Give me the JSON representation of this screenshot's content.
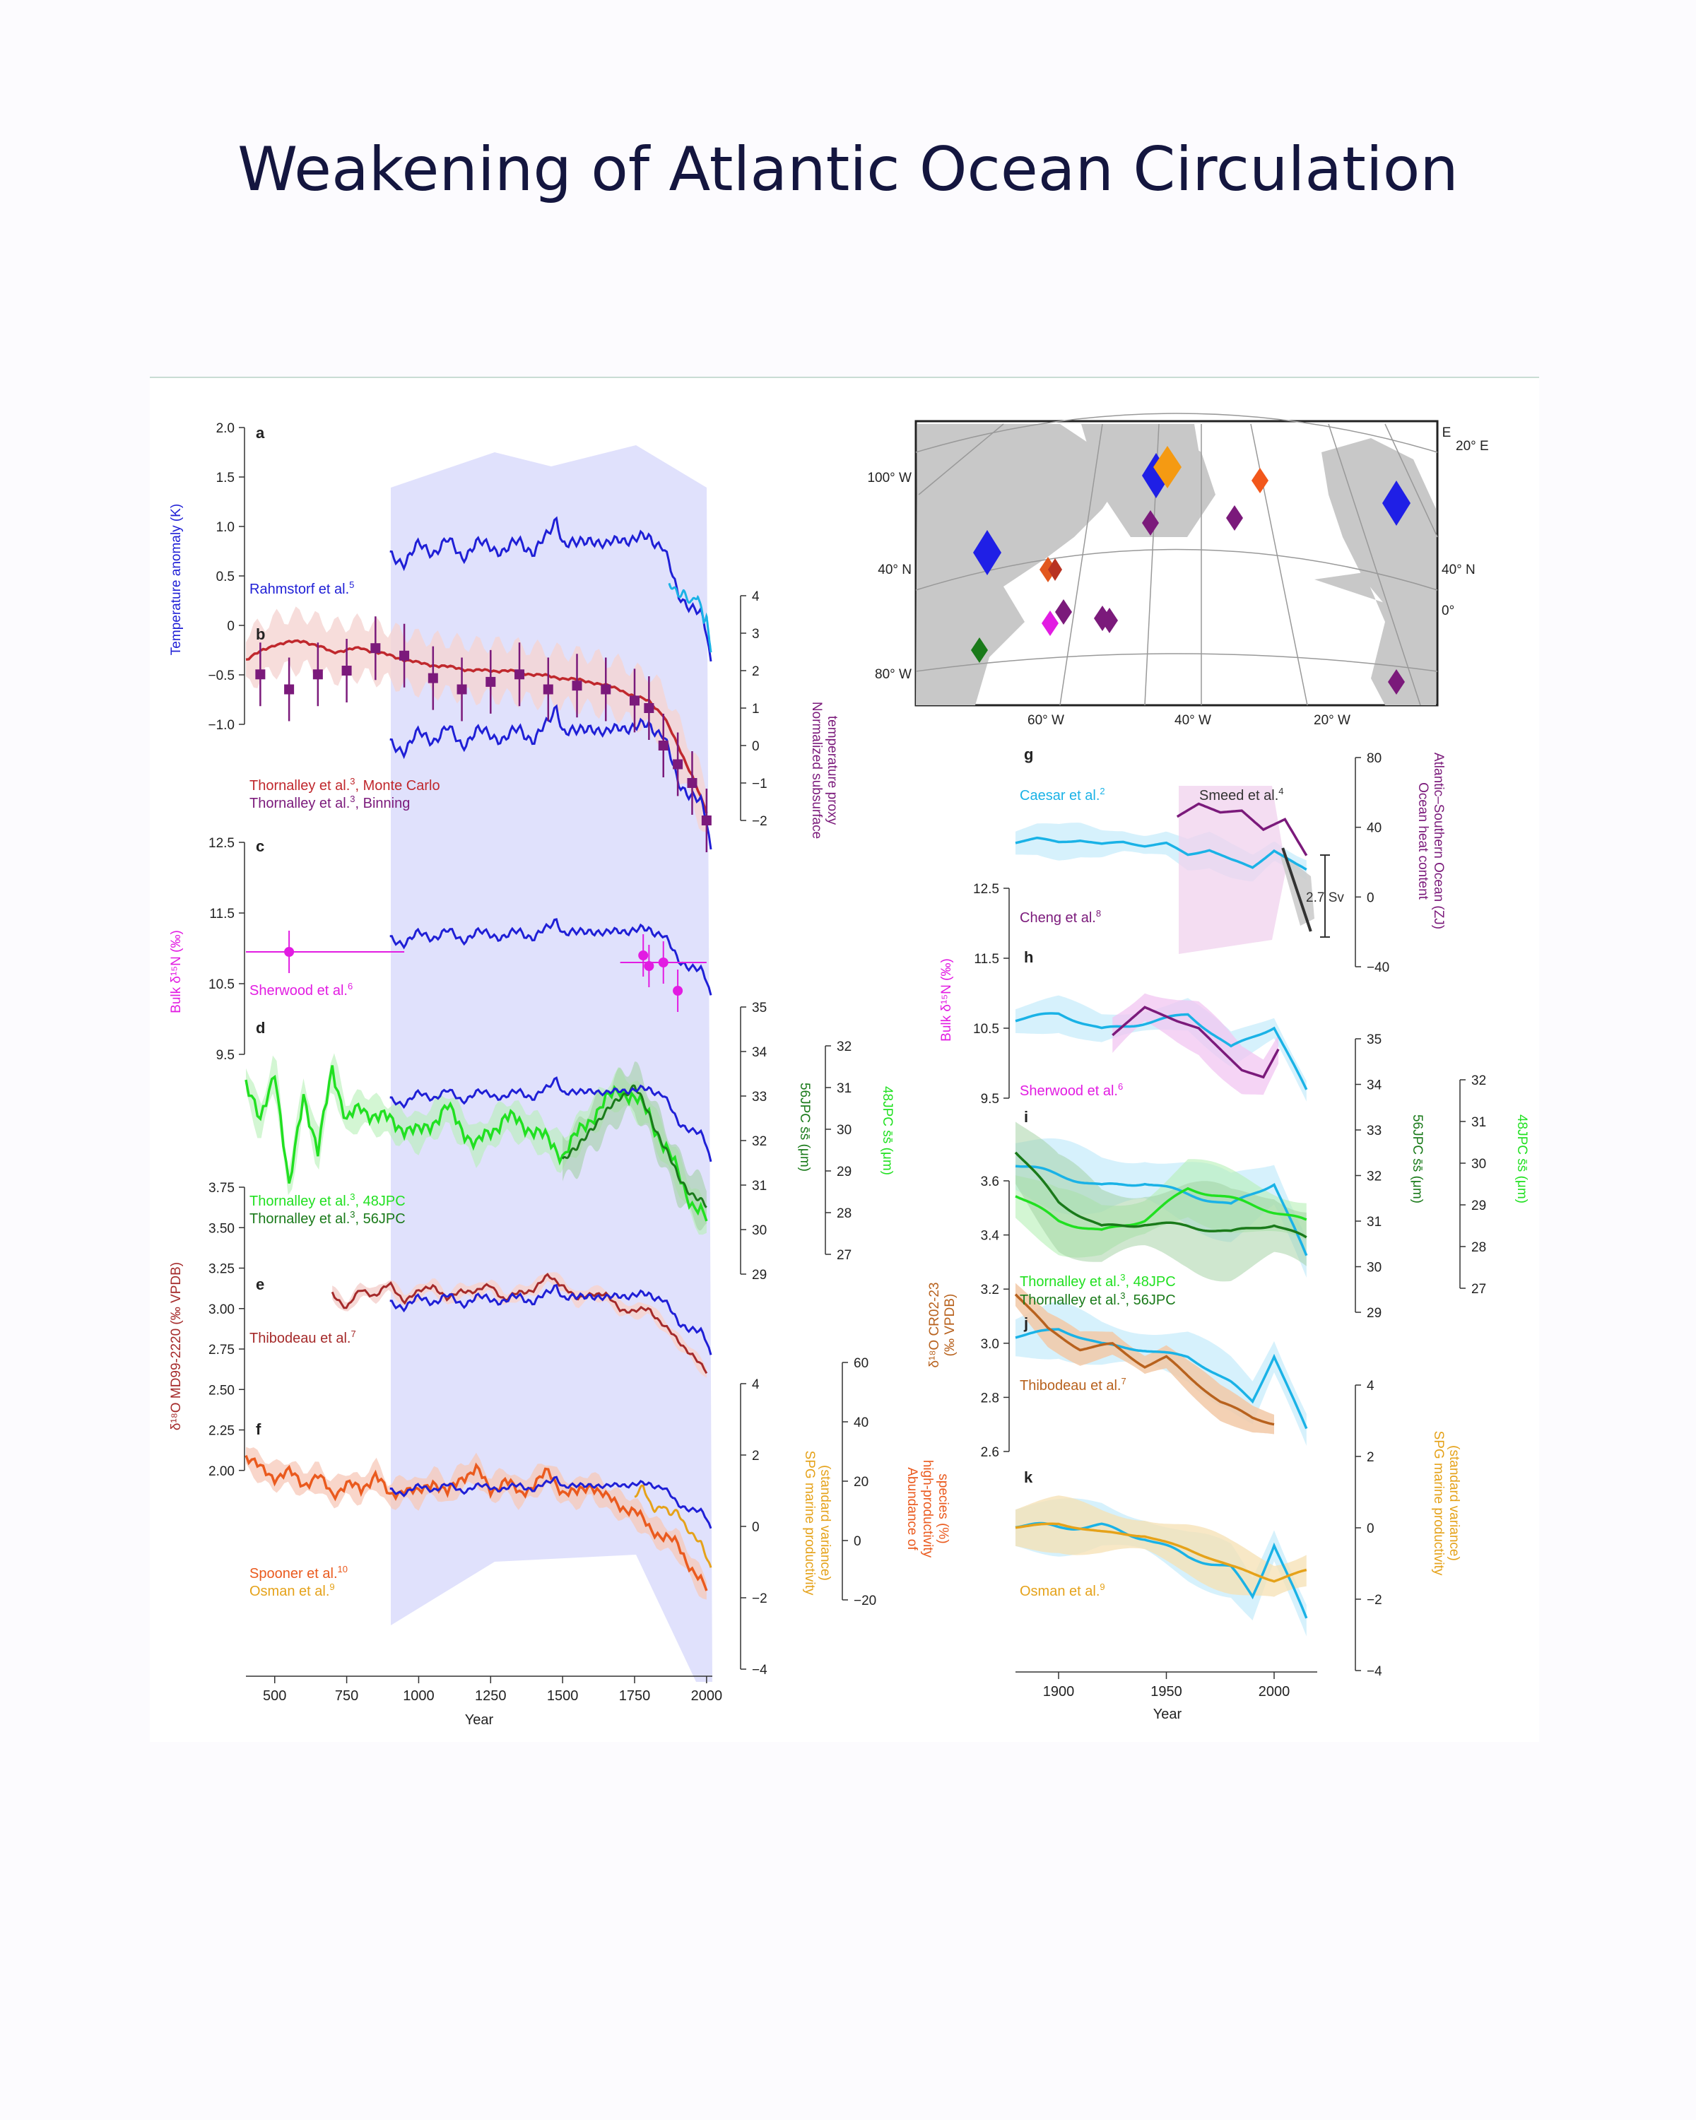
{
  "title": "Weakening of Atlantic Ocean Circulation",
  "colors": {
    "blue": "#1f1fd6",
    "cyan": "#1ab2e6",
    "red": "#c0282d",
    "purple": "#7b1a7b",
    "magenta": "#e21ce2",
    "green_light": "#21e021",
    "green_dark": "#1a7a1a",
    "darkred": "#a52a2a",
    "orange": "#ea5a1e",
    "gold": "#e5a21a",
    "brown": "#b8621e",
    "band_blue": "#d5d7fb",
    "band_red": "#f5d5d2"
  },
  "left_axes": {
    "x_label": "Year",
    "x_ticks": [
      "500",
      "750",
      "1000",
      "1250",
      "1500",
      "1750",
      "2000"
    ],
    "a_ticks": [
      "2.0",
      "1.5",
      "1.0",
      "0.5",
      "0",
      "−0.5",
      "−1.0"
    ],
    "a_label": "Temperature anomaly (K)",
    "b_ticks": [
      "4",
      "3",
      "2",
      "1",
      "0",
      "−1",
      "−2"
    ],
    "b_label": [
      "Normalized subsurface",
      "temperature proxy"
    ],
    "c_ticks": [
      "12.5",
      "11.5",
      "10.5",
      "9.5"
    ],
    "c_label": "Bulk δ¹⁵N (‰)",
    "d56_ticks": [
      "35",
      "34",
      "33",
      "32",
      "31",
      "30",
      "29"
    ],
    "d56_label": "56JPC s̄s̄ (μm)",
    "d48_ticks": [
      "32",
      "31",
      "30",
      "29",
      "28",
      "27"
    ],
    "d48_label": "48JPC s̄s̄ (μm)",
    "e_ticks": [
      "3.75",
      "3.50",
      "3.25",
      "3.00",
      "2.75",
      "2.50",
      "2.25",
      "2.00"
    ],
    "e_label": "δ¹⁸O MD99-2220 (‰ VPDB)",
    "f1_ticks": [
      "4",
      "2",
      "0",
      "−2",
      "−4"
    ],
    "f1_label": [
      "SPG marine productivity",
      "(standard variance)"
    ],
    "f2_ticks": [
      "60",
      "40",
      "20",
      "0",
      "−20"
    ],
    "f2_label": [
      "Abundance of",
      "high-productivity",
      "species (%)"
    ]
  },
  "left_panels": {
    "a": {
      "letter": "a",
      "label": "Rahmstorf et al.",
      "ref": "5"
    },
    "b": {
      "letter": "b",
      "label1": "Thornalley et al.",
      "ref1": "3",
      "suffix1": ", Monte Carlo",
      "label2": "Thornalley et al.",
      "ref2": "3",
      "suffix2": ", Binning"
    },
    "c": {
      "letter": "c",
      "label": "Sherwood et al.",
      "ref": "6"
    },
    "d": {
      "letter": "d",
      "label1": "Thornalley et al.",
      "ref1": "3",
      "suffix1": ", 48JPC",
      "label2": "Thornalley et al.",
      "ref2": "3",
      "suffix2": ", 56JPC"
    },
    "e": {
      "letter": "e",
      "label": "Thibodeau et al.",
      "ref": "7"
    },
    "f": {
      "letter": "f",
      "label1": "Spooner et al.",
      "ref1": "10",
      "label2": "Osman et al.",
      "ref2": "9"
    }
  },
  "right_axes": {
    "x_label": "Year",
    "x_ticks": [
      "1900",
      "1950",
      "2000"
    ],
    "g_ticks": [
      "80",
      "40",
      "0",
      "−40"
    ],
    "g_label": [
      "Ocean heat content",
      "Atlantic–Southern Ocean (ZJ)"
    ],
    "h_ticks": [
      "12.5",
      "11.5",
      "10.5",
      "9.5"
    ],
    "h_label": "Bulk δ¹⁵N (‰)",
    "i56_ticks": [
      "35",
      "34",
      "33",
      "32",
      "31",
      "30",
      "29"
    ],
    "i56_label": "56JPC s̄s̄ (μm)",
    "i48_ticks": [
      "32",
      "31",
      "30",
      "29",
      "28",
      "27"
    ],
    "i48_label": "48JPC s̄s̄ (μm)",
    "j_ticks": [
      "3.6",
      "3.4",
      "3.2",
      "3.0",
      "2.8",
      "2.6"
    ],
    "j_label": [
      "δ¹⁸O CR02-23",
      "(‰ VPDB)"
    ],
    "k_ticks": [
      "4",
      "2",
      "0",
      "−2",
      "−4"
    ],
    "k_label": [
      "SPG marine productivity",
      "(standard variance)"
    ]
  },
  "right_panels": {
    "g": {
      "letter": "g",
      "label_caesar": "Caesar et al.",
      "ref_caesar": "2",
      "label_smeed": "Smeed et al.",
      "ref_smeed": "4",
      "label_cheng": "Cheng et al.",
      "ref_cheng": "8",
      "sv_label": "2.7 Sv"
    },
    "h": {
      "letter": "h",
      "label": "Sherwood et al.",
      "ref": "6"
    },
    "i": {
      "letter": "i",
      "label1": "Thornalley et al.",
      "ref1": "3",
      "suffix1": ", 48JPC",
      "label2": "Thornalley et al.",
      "ref2": "3",
      "suffix2": ", 56JPC"
    },
    "j": {
      "letter": "j",
      "label": "Thibodeau et al.",
      "ref": "7"
    },
    "k": {
      "letter": "k",
      "label": "Osman et al.",
      "ref": "9"
    }
  },
  "map": {
    "top_labels": [
      "100° W",
      "80° W",
      "60° W",
      "40° W",
      "20° W",
      "0°",
      "20° E"
    ],
    "top_right_label": "20° E",
    "left_labels": [
      "100° W",
      "40° N",
      "80° W"
    ],
    "right_labels": [
      "40° N",
      "0°"
    ],
    "bottom_labels": [
      "60° W",
      "40° W",
      "20° W"
    ]
  },
  "chart_data": [
    {
      "type": "line",
      "panel": "a",
      "xlabel": "Year",
      "ylabel": "Temperature anomaly (K)",
      "xlim": [
        400,
        2020
      ],
      "ylim": [
        -1.0,
        2.0
      ],
      "series": [
        {
          "name": "Rahmstorf et al.",
          "x": [
            900,
            950,
            1000,
            1050,
            1100,
            1150,
            1200,
            1250,
            1300,
            1350,
            1400,
            1450,
            1480,
            1500,
            1550,
            1600,
            1650,
            1700,
            1750,
            1800,
            1850,
            1870,
            1900,
            1950,
            1980,
            2000,
            2015
          ],
          "y": [
            0.7,
            0.65,
            0.8,
            0.75,
            0.85,
            0.7,
            0.82,
            0.8,
            0.75,
            0.85,
            0.75,
            0.9,
            1.1,
            0.85,
            0.8,
            0.9,
            0.78,
            0.9,
            0.85,
            0.9,
            0.8,
            0.6,
            0.3,
            0.2,
            0.1,
            -0.1,
            -0.4
          ]
        },
        {
          "name": "Caesar et al.",
          "x": [
            1870,
            1900,
            1920,
            1950,
            1970,
            1990,
            2000,
            2010,
            2015
          ],
          "y": [
            0.4,
            0.3,
            0.35,
            0.25,
            0.3,
            0.0,
            0.1,
            -0.2,
            -0.3
          ]
        }
      ]
    },
    {
      "type": "line",
      "panel": "b",
      "xlabel": "Year",
      "ylabel": "Normalized subsurface temperature proxy",
      "xlim": [
        400,
        2020
      ],
      "ylim": [
        -3,
        4
      ],
      "series": [
        {
          "name": "Thornalley et al., Monte Carlo",
          "x": [
            400,
            500,
            600,
            700,
            800,
            900,
            1000,
            1100,
            1200,
            1300,
            1400,
            1500,
            1600,
            1700,
            1750,
            1800,
            1850,
            1900,
            1950,
            2000
          ],
          "y": [
            2.3,
            2.7,
            2.8,
            2.5,
            2.6,
            2.4,
            2.2,
            2.1,
            2.0,
            2.0,
            1.9,
            1.8,
            1.7,
            1.5,
            1.3,
            1.2,
            0.8,
            0.0,
            -0.8,
            -1.8
          ]
        },
        {
          "name": "Thornalley et al., Binning",
          "x": [
            450,
            550,
            650,
            750,
            850,
            950,
            1050,
            1150,
            1250,
            1350,
            1450,
            1550,
            1650,
            1750,
            1800,
            1850,
            1900,
            1950,
            2000
          ],
          "y": [
            1.9,
            1.5,
            1.9,
            2.0,
            2.6,
            2.4,
            1.8,
            1.5,
            1.7,
            1.9,
            1.5,
            1.6,
            1.5,
            1.2,
            1.0,
            0.0,
            -0.5,
            -1.0,
            -2.0
          ]
        }
      ]
    },
    {
      "type": "scatter",
      "panel": "c",
      "xlabel": "Year",
      "ylabel": "Bulk δ15N (‰)",
      "xlim": [
        400,
        2020
      ],
      "ylim": [
        9.0,
        12.5
      ],
      "series": [
        {
          "name": "Sherwood et al.",
          "x": [
            550,
            1780,
            1800,
            1850,
            1900
          ],
          "y": [
            10.95,
            10.9,
            10.75,
            10.8,
            10.4
          ]
        }
      ]
    },
    {
      "type": "line",
      "panel": "d",
      "xlabel": "Year",
      "ylabel": "56JPC / 48JPC sortable silt (μm)",
      "xlim": [
        400,
        2020
      ],
      "series": [
        {
          "name": "Thornalley et al., 48JPC",
          "x": [
            400,
            450,
            500,
            550,
            600,
            650,
            700,
            750,
            800,
            900,
            1000,
            1100,
            1200,
            1300,
            1400,
            1500,
            1600,
            1700,
            1750,
            1800,
            1850,
            1900,
            1950,
            2000
          ],
          "y": [
            31.2,
            30.1,
            31.5,
            28.5,
            30.9,
            29.4,
            31.5,
            30.2,
            30.5,
            30.2,
            29.9,
            30.5,
            29.6,
            30.3,
            30.0,
            29.4,
            30.3,
            31.0,
            30.7,
            30.4,
            29.6,
            29.0,
            28.2,
            27.8
          ]
        },
        {
          "name": "Thornalley et al., 56JPC",
          "x": [
            1500,
            1550,
            1600,
            1650,
            1700,
            1750,
            1800,
            1850,
            1900,
            1950,
            2000
          ],
          "y": [
            31.6,
            31.8,
            32.3,
            32.6,
            33.0,
            33.2,
            32.6,
            31.9,
            31.2,
            30.8,
            30.5
          ]
        }
      ]
    },
    {
      "type": "line",
      "panel": "e",
      "xlabel": "Year",
      "ylabel": "δ18O MD99-2220 (‰ VPDB)",
      "xlim": [
        400,
        2020
      ],
      "ylim": [
        2.0,
        3.75
      ],
      "series": [
        {
          "name": "Thibodeau et al.",
          "x": [
            700,
            750,
            800,
            850,
            900,
            950,
            1000,
            1050,
            1100,
            1150,
            1200,
            1250,
            1300,
            1350,
            1400,
            1450,
            1500,
            1550,
            1600,
            1650,
            1700,
            1750,
            1800,
            1850,
            1900,
            1950,
            2000
          ],
          "y": [
            3.1,
            3.0,
            3.12,
            3.08,
            3.15,
            3.05,
            3.1,
            3.15,
            3.05,
            3.12,
            3.1,
            3.15,
            3.05,
            3.1,
            3.12,
            3.2,
            3.15,
            3.05,
            3.1,
            3.08,
            3.0,
            2.98,
            3.0,
            2.9,
            2.8,
            2.72,
            2.6
          ]
        }
      ]
    },
    {
      "type": "line",
      "panel": "f",
      "xlabel": "Year",
      "ylabel": "SPG marine productivity (standard variance) / Abundance of high-productivity species (%)",
      "xlim": [
        400,
        2020
      ],
      "series": [
        {
          "name": "Spooner et al.",
          "x": [
            400,
            450,
            500,
            550,
            600,
            650,
            700,
            750,
            800,
            850,
            900,
            950,
            1000,
            1050,
            1100,
            1150,
            1200,
            1250,
            1300,
            1350,
            1400,
            1450,
            1500,
            1550,
            1600,
            1650,
            1700,
            1750,
            1800,
            1850,
            1900,
            1950,
            2000
          ],
          "y": [
            2.0,
            1.6,
            1.4,
            1.5,
            1.2,
            1.4,
            0.9,
            1.2,
            1.0,
            1.5,
            0.8,
            1.1,
            0.9,
            1.3,
            0.9,
            1.4,
            1.6,
            1.0,
            1.3,
            0.9,
            1.2,
            1.5,
            1.0,
            0.9,
            1.2,
            0.8,
            0.6,
            0.4,
            0.0,
            -0.3,
            -0.5,
            -1.2,
            -1.8
          ]
        },
        {
          "name": "Osman et al.",
          "x": [
            1750,
            1780,
            1800,
            1820,
            1850,
            1870,
            1900,
            1930,
            1960,
            1980,
            2000,
            2015
          ],
          "y": [
            0.8,
            1.1,
            0.7,
            0.5,
            0.6,
            0.3,
            0.4,
            0.0,
            -0.3,
            -0.5,
            -0.9,
            -1.2
          ]
        }
      ]
    },
    {
      "type": "line",
      "panel": "g",
      "xlabel": "Year",
      "ylabel": "Ocean heat content Atlantic–Southern Ocean (ZJ)",
      "xlim": [
        1880,
        2020
      ],
      "series": [
        {
          "name": "Caesar et al.",
          "x": [
            1880,
            1890,
            1900,
            1910,
            1920,
            1930,
            1940,
            1950,
            1960,
            1970,
            1980,
            1990,
            2000,
            2010,
            2015
          ],
          "y": [
            0.4,
            0.5,
            0.42,
            0.48,
            0.38,
            0.45,
            0.35,
            0.4,
            0.1,
            0.22,
            -0.05,
            -0.25,
            0.2,
            -0.15,
            -0.3
          ]
        },
        {
          "name": "Cheng et al.",
          "x": [
            1955,
            1965,
            1975,
            1985,
            1995,
            2005,
            2015
          ],
          "y": [
            15,
            30,
            20,
            22,
            0,
            12,
            -30
          ]
        },
        {
          "name": "Smeed et al.",
          "x": [
            2004,
            2017
          ],
          "y": [
            2.7,
            -2.7
          ]
        }
      ]
    },
    {
      "type": "line",
      "panel": "h",
      "xlabel": "Year",
      "ylabel": "Bulk δ15N (‰)",
      "xlim": [
        1880,
        2020
      ],
      "ylim": [
        9.5,
        12.5
      ],
      "series": [
        {
          "name": "Sherwood et al.",
          "x": [
            1925,
            1940,
            1955,
            1965,
            1975,
            1985,
            1995,
            2002
          ],
          "y": [
            10.4,
            10.8,
            10.6,
            10.5,
            10.2,
            9.9,
            9.8,
            10.2
          ]
        }
      ]
    },
    {
      "type": "line",
      "panel": "i",
      "xlabel": "Year",
      "ylabel": "56JPC / 48JPC sortable silt (μm)",
      "xlim": [
        1880,
        2020
      ],
      "series": [
        {
          "name": "Thornalley et al., 48JPC",
          "x": [
            1880,
            1900,
            1920,
            1940,
            1960,
            1980,
            2000,
            2015
          ],
          "y": [
            29.2,
            28.6,
            28.4,
            28.7,
            29.4,
            29.1,
            28.8,
            28.6
          ]
        },
        {
          "name": "Thornalley et al., 56JPC",
          "x": [
            1880,
            1900,
            1920,
            1940,
            1960,
            1980,
            2000,
            2015
          ],
          "y": [
            32.5,
            31.4,
            30.9,
            31.0,
            30.9,
            30.7,
            30.9,
            30.6
          ]
        }
      ]
    },
    {
      "type": "line",
      "panel": "j",
      "xlabel": "Year",
      "ylabel": "δ18O CR02-23 (‰ VPDB)",
      "xlim": [
        1880,
        2020
      ],
      "ylim": [
        2.6,
        3.6
      ],
      "series": [
        {
          "name": "Thibodeau et al.",
          "x": [
            1880,
            1895,
            1910,
            1925,
            1940,
            1950,
            1960,
            1975,
            1990,
            2000
          ],
          "y": [
            3.18,
            3.05,
            2.98,
            3.0,
            2.92,
            2.95,
            2.88,
            2.78,
            2.72,
            2.7
          ]
        }
      ]
    },
    {
      "type": "line",
      "panel": "k",
      "xlabel": "Year",
      "ylabel": "SPG marine productivity (standard variance)",
      "xlim": [
        1880,
        2020
      ],
      "ylim": [
        -4,
        4
      ],
      "series": [
        {
          "name": "Osman et al.",
          "x": [
            1880,
            1900,
            1920,
            1940,
            1960,
            1980,
            2000,
            2015
          ],
          "y": [
            0.0,
            0.1,
            -0.1,
            -0.2,
            -0.6,
            -1.1,
            -1.5,
            -1.2
          ]
        }
      ]
    }
  ]
}
